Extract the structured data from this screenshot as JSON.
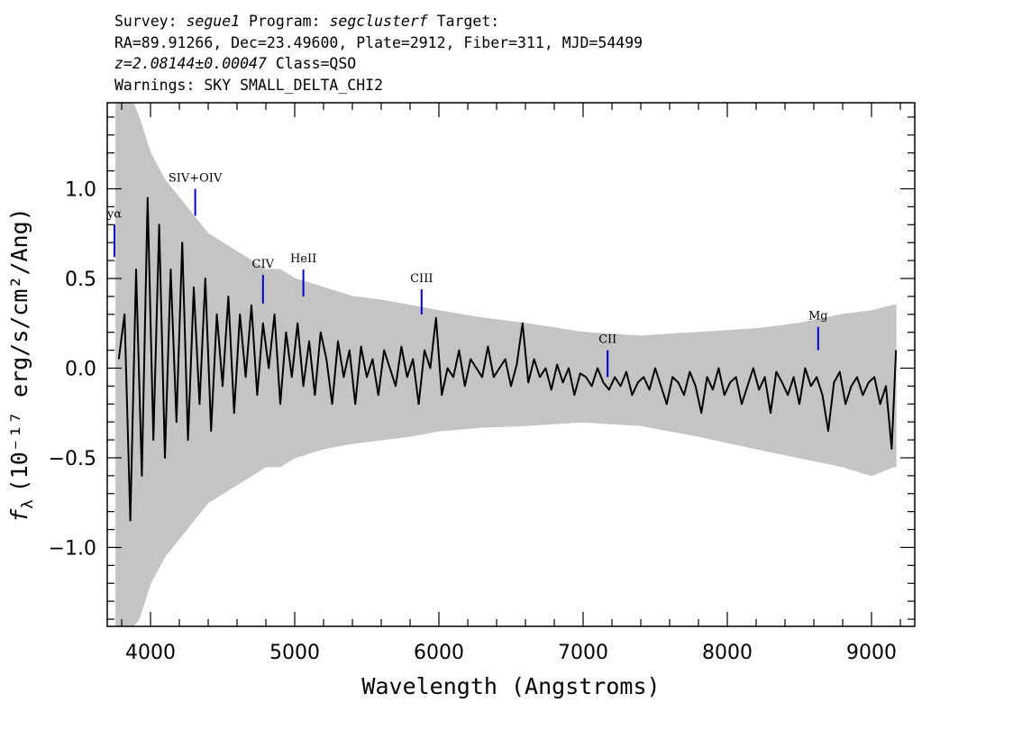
{
  "header": {
    "survey_label": "Survey:",
    "survey": "segue1",
    "program_label": "Program:",
    "program": "segclusterf",
    "target_label": "Target:",
    "coords": "RA=89.91266, Dec=23.49600, Plate=2912, Fiber=311, MJD=54499",
    "redshift": "z=2.08144±0.00047",
    "class": "Class=QSO",
    "warnings": "Warnings: SKY SMALL_DELTA_CHI2"
  },
  "chart_data": {
    "type": "line",
    "xlabel": "Wavelength (Angstroms)",
    "ylabel_symbol": "f",
    "ylabel_subscript": "λ",
    "ylabel_rest": "(10⁻¹⁷ erg/s/cm²/Ang)",
    "xlim": [
      3700,
      9300
    ],
    "ylim": [
      -1.44,
      1.48
    ],
    "xticks": [
      4000,
      5000,
      6000,
      7000,
      8000,
      9000
    ],
    "xtick_labels": [
      "4000",
      "5000",
      "6000",
      "7000",
      "8000",
      "9000"
    ],
    "yticks": [
      1.0,
      0.5,
      0.0,
      -0.5,
      -1.0
    ],
    "ytick_labels": [
      "1.0",
      "0.5",
      "0.0",
      "−0.5",
      "−1.0"
    ],
    "grid": false,
    "colors": {
      "flux": "#000000",
      "error": "#c4c4c4",
      "lines": "#0000cc"
    },
    "series": [
      {
        "role": "flux",
        "x": [
          3780,
          3820,
          3860,
          3900,
          3940,
          3980,
          4020,
          4060,
          4100,
          4140,
          4180,
          4220,
          4260,
          4300,
          4340,
          4380,
          4420,
          4460,
          4500,
          4540,
          4580,
          4620,
          4660,
          4700,
          4740,
          4780,
          4820,
          4860,
          4900,
          4940,
          4980,
          5020,
          5060,
          5100,
          5140,
          5180,
          5220,
          5260,
          5300,
          5340,
          5380,
          5420,
          5460,
          5500,
          5540,
          5580,
          5620,
          5660,
          5700,
          5740,
          5780,
          5820,
          5860,
          5900,
          5940,
          5980,
          6020,
          6060,
          6100,
          6140,
          6180,
          6220,
          6260,
          6300,
          6340,
          6380,
          6420,
          6460,
          6500,
          6540,
          6580,
          6620,
          6660,
          6700,
          6740,
          6780,
          6820,
          6860,
          6900,
          6940,
          6980,
          7020,
          7060,
          7100,
          7140,
          7180,
          7220,
          7260,
          7300,
          7340,
          7380,
          7420,
          7460,
          7500,
          7540,
          7580,
          7620,
          7660,
          7700,
          7740,
          7780,
          7820,
          7860,
          7900,
          7940,
          7980,
          8020,
          8060,
          8100,
          8140,
          8180,
          8220,
          8260,
          8300,
          8340,
          8380,
          8420,
          8460,
          8500,
          8540,
          8580,
          8620,
          8660,
          8700,
          8740,
          8780,
          8820,
          8860,
          8900,
          8940,
          8980,
          9020,
          9060,
          9100,
          9140,
          9170
        ],
        "y": [
          0.05,
          0.3,
          -0.85,
          0.55,
          -0.6,
          0.95,
          -0.4,
          0.8,
          -0.5,
          0.55,
          -0.3,
          0.7,
          -0.4,
          0.45,
          -0.2,
          0.5,
          -0.35,
          0.3,
          -0.1,
          0.4,
          -0.25,
          0.3,
          -0.05,
          0.35,
          -0.15,
          0.25,
          0.0,
          0.3,
          -0.2,
          0.2,
          -0.05,
          0.25,
          -0.1,
          0.15,
          -0.15,
          0.2,
          0.05,
          -0.2,
          0.15,
          -0.05,
          0.1,
          -0.2,
          0.12,
          -0.05,
          0.05,
          -0.15,
          0.1,
          0.0,
          -0.1,
          0.12,
          -0.05,
          0.05,
          -0.2,
          0.1,
          0.0,
          0.28,
          -0.15,
          0.0,
          -0.05,
          0.1,
          -0.1,
          0.05,
          0.0,
          -0.05,
          0.12,
          -0.05,
          0.0,
          0.05,
          -0.1,
          0.02,
          0.25,
          -0.08,
          0.05,
          -0.05,
          0.0,
          -0.12,
          0.02,
          -0.08,
          0.0,
          -0.15,
          -0.03,
          -0.05,
          -0.1,
          0.0,
          -0.08,
          -0.12,
          -0.05,
          -0.1,
          -0.02,
          -0.15,
          -0.08,
          -0.05,
          -0.12,
          0.0,
          -0.1,
          -0.2,
          -0.05,
          -0.08,
          -0.15,
          -0.02,
          -0.1,
          -0.25,
          -0.05,
          -0.12,
          0.0,
          -0.15,
          -0.08,
          -0.05,
          -0.2,
          -0.1,
          0.0,
          -0.12,
          -0.05,
          -0.25,
          -0.02,
          -0.08,
          -0.15,
          -0.05,
          -0.2,
          0.0,
          -0.1,
          -0.05,
          -0.15,
          -0.35,
          -0.08,
          -0.02,
          -0.2,
          -0.1,
          -0.05,
          -0.15,
          -0.08,
          -0.05,
          -0.2,
          -0.1,
          -0.45,
          0.1
        ]
      },
      {
        "role": "error_envelope",
        "x": [
          3760,
          3800,
          3840,
          3880,
          3920,
          3960,
          4000,
          4100,
          4200,
          4300,
          4400,
          4500,
          4600,
          4700,
          4800,
          4900,
          5000,
          5200,
          5400,
          5600,
          5800,
          6000,
          6300,
          6600,
          7000,
          7400,
          7800,
          8200,
          8500,
          8800,
          9000,
          9150,
          9170
        ],
        "high": [
          1.5,
          1.48,
          1.48,
          1.48,
          1.4,
          1.3,
          1.2,
          1.05,
          0.95,
          0.85,
          0.75,
          0.7,
          0.65,
          0.6,
          0.55,
          0.55,
          0.5,
          0.45,
          0.4,
          0.38,
          0.35,
          0.32,
          0.28,
          0.25,
          0.2,
          0.18,
          0.2,
          0.22,
          0.25,
          0.3,
          0.32,
          0.35,
          0.35
        ],
        "low": [
          -1.44,
          -1.44,
          -1.44,
          -1.44,
          -1.4,
          -1.3,
          -1.2,
          -1.05,
          -0.95,
          -0.85,
          -0.75,
          -0.7,
          -0.65,
          -0.6,
          -0.55,
          -0.55,
          -0.5,
          -0.45,
          -0.42,
          -0.4,
          -0.38,
          -0.35,
          -0.33,
          -0.32,
          -0.3,
          -0.32,
          -0.38,
          -0.45,
          -0.5,
          -0.55,
          -0.6,
          -0.55,
          -0.55
        ]
      }
    ],
    "annotations": [
      {
        "label": "yα",
        "x": 3750,
        "y_low": 0.62,
        "y_high": 0.8
      },
      {
        "label": "SIV+OIV",
        "x": 4310,
        "y_low": 0.85,
        "y_high": 1.0
      },
      {
        "label": "CIV",
        "x": 4780,
        "y_low": 0.36,
        "y_high": 0.52
      },
      {
        "label": "HeII",
        "x": 5060,
        "y_low": 0.4,
        "y_high": 0.55
      },
      {
        "label": "CIII",
        "x": 5880,
        "y_low": 0.3,
        "y_high": 0.44
      },
      {
        "label": "CII",
        "x": 7170,
        "y_low": -0.05,
        "y_high": 0.1
      },
      {
        "label": "Mg",
        "x": 8630,
        "y_low": 0.1,
        "y_high": 0.23
      }
    ]
  }
}
